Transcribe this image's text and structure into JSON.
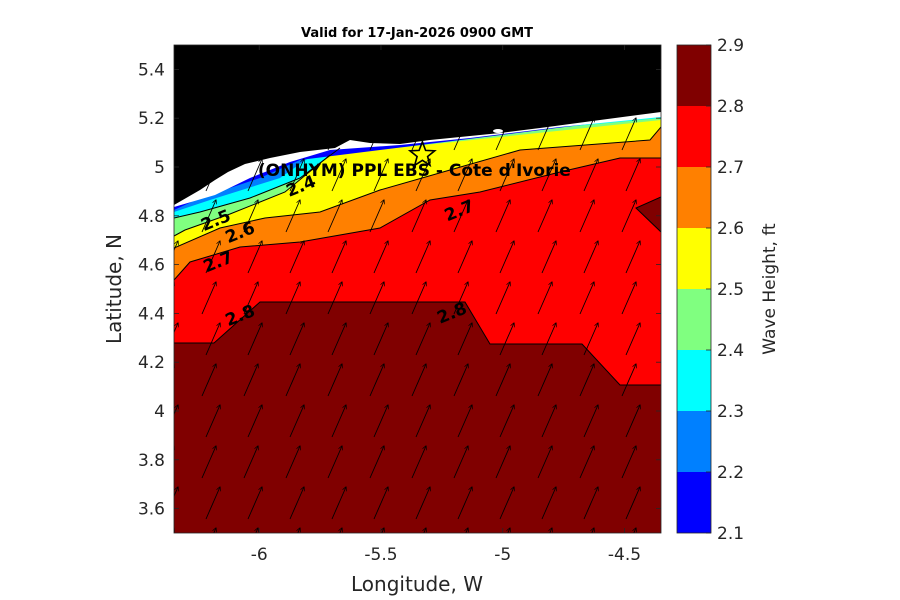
{
  "chart_data": {
    "type": "heatmap",
    "title": "Valid for 17-Jan-2026 0900 GMT",
    "xlabel": "Longitude, W",
    "ylabel": "Latitude, N",
    "xlim": [
      -6.35,
      -4.35
    ],
    "ylim": [
      3.5,
      5.5
    ],
    "x_ticks": [
      -6,
      -5.5,
      -5,
      -4.5
    ],
    "x_tick_labels": [
      "-6",
      "-5.5",
      "-5",
      "-4.5"
    ],
    "y_ticks": [
      3.6,
      3.8,
      4,
      4.2,
      4.4,
      4.6,
      4.8,
      5,
      5.2,
      5.4
    ],
    "y_tick_labels": [
      "3.6",
      "3.8",
      "4",
      "4.2",
      "4.4",
      "4.6",
      "4.8",
      "5",
      "5.2",
      "5.4"
    ],
    "colorbar": {
      "label": "Wave Height, ft",
      "levels": [
        2.1,
        2.2,
        2.3,
        2.4,
        2.5,
        2.6,
        2.7,
        2.8,
        2.9
      ],
      "tick_labels": [
        "2.1",
        "2.2",
        "2.3",
        "2.4",
        "2.5",
        "2.6",
        "2.7",
        "2.8",
        "2.9"
      ],
      "colors": [
        "#0000ff",
        "#0080ff",
        "#00ffff",
        "#80ff80",
        "#ffff00",
        "#ff8000",
        "#ff0000",
        "#800000"
      ]
    },
    "land_color": "#000000",
    "contour_labels": [
      {
        "text": "2.4",
        "lon": -5.82,
        "lat": 4.9
      },
      {
        "text": "2.5",
        "lon": -6.17,
        "lat": 4.76
      },
      {
        "text": "2.6",
        "lon": -6.07,
        "lat": 4.71
      },
      {
        "text": "2.7",
        "lon": -6.16,
        "lat": 4.59
      },
      {
        "text": "2.7",
        "lon": -5.17,
        "lat": 4.8
      },
      {
        "text": "2.8",
        "lon": -6.07,
        "lat": 4.37
      },
      {
        "text": "2.8",
        "lon": -5.2,
        "lat": 4.38
      }
    ],
    "site": {
      "label": "(ONHYM) PPL EBS  - Cote d'Ivorie",
      "lon": -5.33,
      "lat": 5.05,
      "marker": "star"
    },
    "wave_direction": "arrows point toward the NNE"
  }
}
